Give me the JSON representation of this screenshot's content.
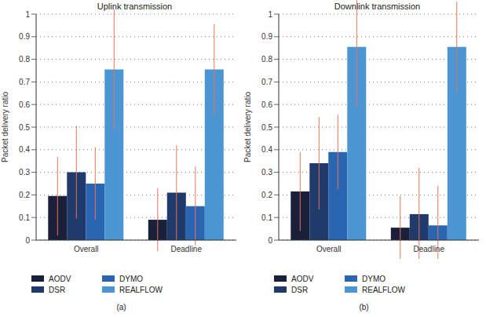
{
  "chart_data": [
    {
      "type": "bar",
      "title": "Uplink transmission",
      "y_label": "Packet delivery ratio",
      "caption": "(a)",
      "categories": [
        "Overall",
        "Deadline"
      ],
      "ylim": [
        0,
        1
      ],
      "yticks": [
        0,
        0.1,
        0.2,
        0.3,
        0.4,
        0.5,
        0.6,
        0.7,
        0.8,
        0.9,
        1
      ],
      "grid": true,
      "series": [
        {
          "name": "AODV",
          "color": "#1a1f3a",
          "values": [
            0.195,
            0.09
          ],
          "errors": [
            0.175,
            0.14
          ]
        },
        {
          "name": "DSR",
          "color": "#1f3a6b",
          "values": [
            0.3,
            0.21
          ],
          "errors": [
            0.205,
            0.21
          ]
        },
        {
          "name": "DYMO",
          "color": "#2a66b0",
          "values": [
            0.25,
            0.15
          ],
          "errors": [
            0.16,
            0.175
          ]
        },
        {
          "name": "REALFLOW",
          "color": "#4a95d2",
          "values": [
            0.755,
            0.755
          ],
          "errors": [
            0.265,
            0.2
          ]
        }
      ]
    },
    {
      "type": "bar",
      "title": "Downlink transmission",
      "y_label": "Packet delivery ratio",
      "caption": "(b)",
      "categories": [
        "Overall",
        "Deadline"
      ],
      "ylim": [
        0,
        1
      ],
      "yticks": [
        0,
        0.1,
        0.2,
        0.3,
        0.4,
        0.5,
        0.6,
        0.7,
        0.8,
        0.9,
        1
      ],
      "grid": true,
      "series": [
        {
          "name": "AODV",
          "color": "#1a1f3a",
          "values": [
            0.215,
            0.055
          ],
          "errors": [
            0.175,
            0.14
          ]
        },
        {
          "name": "DSR",
          "color": "#1f3a6b",
          "values": [
            0.34,
            0.115
          ],
          "errors": [
            0.205,
            0.205
          ]
        },
        {
          "name": "DYMO",
          "color": "#2a66b0",
          "values": [
            0.39,
            0.065
          ],
          "errors": [
            0.165,
            0.175
          ]
        },
        {
          "name": "REALFLOW",
          "color": "#4a95d2",
          "values": [
            0.855,
            0.855
          ],
          "errors": [
            0.265,
            0.2
          ]
        }
      ]
    }
  ]
}
